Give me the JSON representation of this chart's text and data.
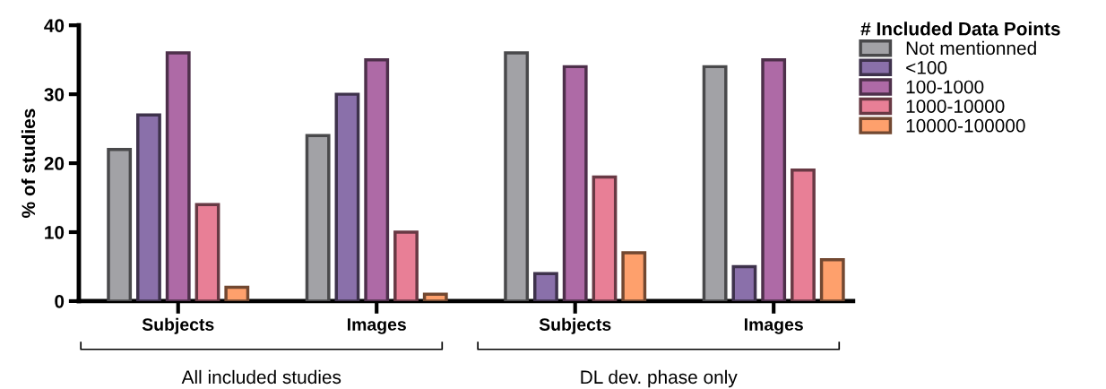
{
  "chart_data": {
    "type": "bar",
    "ylabel": "% of studies",
    "legend_title": "# Included Data Points",
    "categories": [
      "Subjects",
      "Images",
      "Subjects",
      "Images"
    ],
    "series": [
      {
        "name": "Not mentionned",
        "color": "#a2a2a6",
        "values": [
          22,
          24,
          36,
          34
        ]
      },
      {
        "name": "<100",
        "color": "#8a70aa",
        "values": [
          27,
          30,
          4,
          5
        ]
      },
      {
        "name": "100-1000",
        "color": "#ae6aa6",
        "values": [
          36,
          35,
          34,
          35
        ]
      },
      {
        "name": "1000-10000",
        "color": "#e87f96",
        "values": [
          14,
          10,
          18,
          19
        ]
      },
      {
        "name": "10000-100000",
        "color": "#fea06c",
        "values": [
          2,
          1,
          7,
          6
        ]
      }
    ],
    "ylim": [
      0,
      40
    ],
    "yticks": [
      0,
      10,
      20,
      30,
      40
    ],
    "grid": false,
    "legend": "top right",
    "annotations": [
      "All included studies",
      "DL dev. phase only"
    ]
  }
}
